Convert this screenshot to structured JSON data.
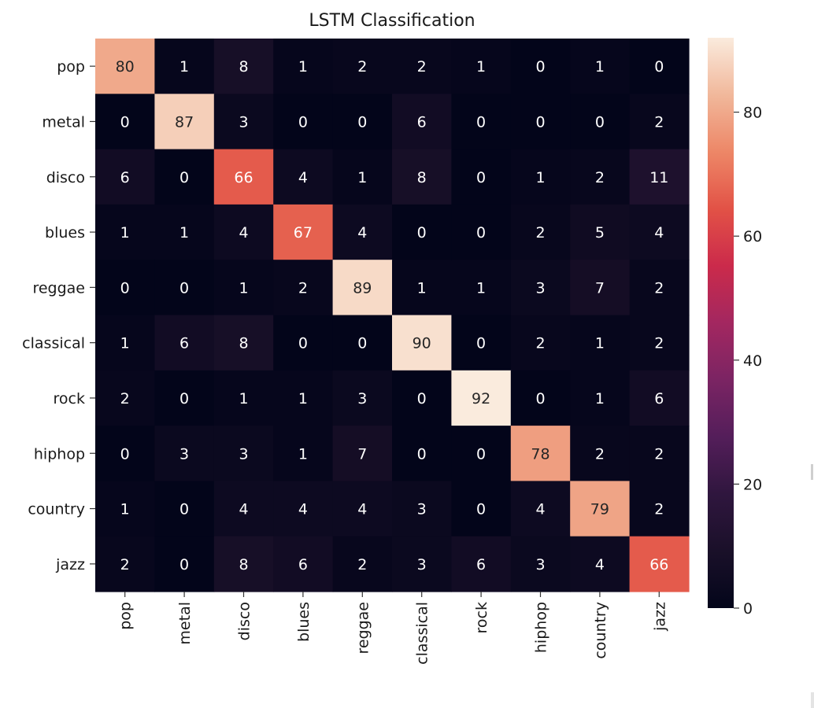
{
  "chart_data": {
    "type": "heatmap",
    "title": "LSTM Classification",
    "xlabel": "",
    "ylabel": "",
    "row_labels": [
      "pop",
      "metal",
      "disco",
      "blues",
      "reggae",
      "classical",
      "rock",
      "hiphop",
      "country",
      "jazz"
    ],
    "col_labels": [
      "pop",
      "metal",
      "disco",
      "blues",
      "reggae",
      "classical",
      "rock",
      "hiphop",
      "country",
      "jazz"
    ],
    "values": [
      [
        80,
        1,
        8,
        1,
        2,
        2,
        1,
        0,
        1,
        0
      ],
      [
        0,
        87,
        3,
        0,
        0,
        6,
        0,
        0,
        0,
        2
      ],
      [
        6,
        0,
        66,
        4,
        1,
        8,
        0,
        1,
        2,
        11
      ],
      [
        1,
        1,
        4,
        67,
        4,
        0,
        0,
        2,
        5,
        4
      ],
      [
        0,
        0,
        1,
        2,
        89,
        1,
        1,
        3,
        7,
        2
      ],
      [
        1,
        6,
        8,
        0,
        0,
        90,
        0,
        2,
        1,
        2
      ],
      [
        2,
        0,
        1,
        1,
        3,
        0,
        92,
        0,
        1,
        6
      ],
      [
        0,
        3,
        3,
        1,
        7,
        0,
        0,
        78,
        2,
        2
      ],
      [
        1,
        0,
        4,
        4,
        4,
        3,
        0,
        4,
        79,
        2
      ],
      [
        2,
        0,
        8,
        6,
        2,
        3,
        6,
        3,
        4,
        66
      ]
    ],
    "colormap": "rocket",
    "colorbar": {
      "range": [
        0,
        92
      ],
      "ticks": [
        0,
        20,
        40,
        60,
        80
      ],
      "tick_labels": [
        "0",
        "20",
        "40",
        "60",
        "80"
      ],
      "placement": "right"
    },
    "annotations": true,
    "grid": false
  }
}
